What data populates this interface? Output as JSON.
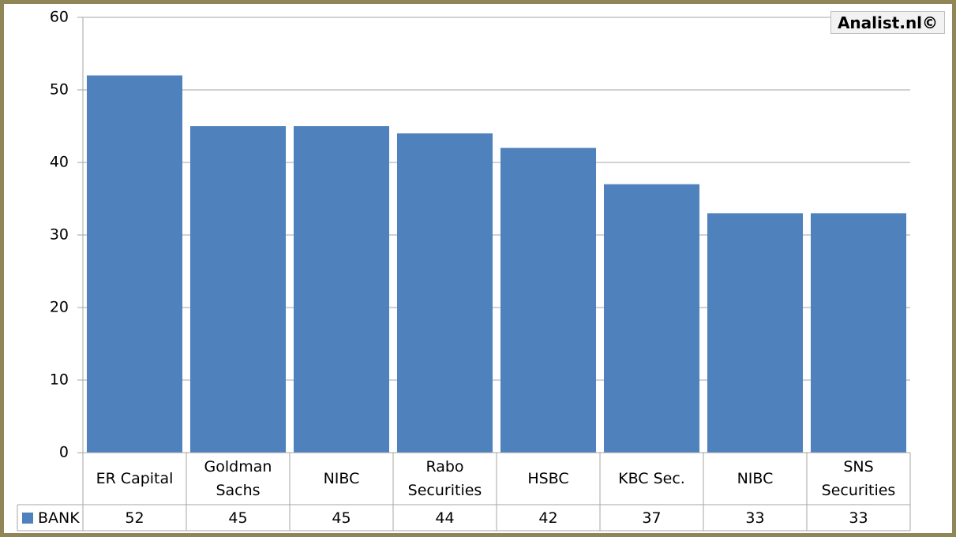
{
  "chart_data": {
    "type": "bar",
    "annotation": "Analist.nl©",
    "categories": [
      "ER Capital",
      "Goldman Sachs",
      "NIBC",
      "Rabo Securities",
      "HSBC",
      "KBC Sec.",
      "NIBC",
      "SNS Securities"
    ],
    "series": [
      {
        "name": "BANK",
        "color": "#4f81bd",
        "values": [
          52,
          45,
          45,
          44,
          42,
          37,
          33,
          33
        ]
      }
    ],
    "ylim": [
      0,
      60
    ],
    "yticks": [
      0,
      10,
      20,
      30,
      40,
      50,
      60
    ],
    "grid": true
  }
}
